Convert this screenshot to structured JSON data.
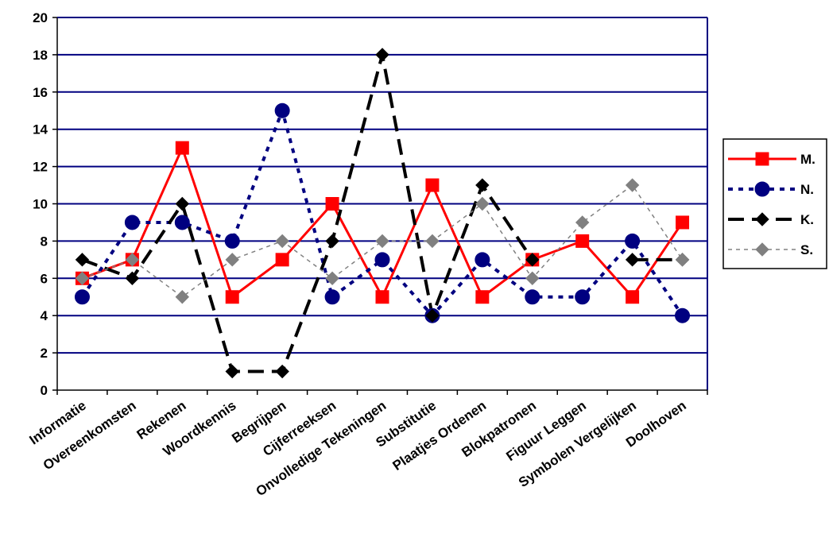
{
  "chart_data": {
    "type": "line",
    "title": "",
    "xlabel": "",
    "ylabel": "",
    "ylim": [
      0,
      20
    ],
    "yticks": [
      0,
      2,
      4,
      6,
      8,
      10,
      12,
      14,
      16,
      18,
      20
    ],
    "grid": true,
    "legend_position": "right",
    "categories": [
      "Informatie",
      "Overeenkomsten",
      "Rekenen",
      "Woordkennis",
      "Begrijpen",
      "Cijferreeksen",
      "Onvolledige Tekeningen",
      "Substitutie",
      "Plaatjes Ordenen",
      "Blokpatronen",
      "Figuur Leggen",
      "Symbolen Vergelijken",
      "Doolhoven"
    ],
    "series": [
      {
        "name": "M.",
        "values": [
          6,
          7,
          13,
          5,
          7,
          10,
          5,
          11,
          5,
          7,
          8,
          5,
          9
        ],
        "color": "#ff0000",
        "marker": "square",
        "dash": "solid"
      },
      {
        "name": "N.",
        "values": [
          5,
          9,
          9,
          8,
          15,
          5,
          7,
          4,
          7,
          5,
          5,
          8,
          4
        ],
        "color": "#000080",
        "marker": "circle",
        "dash": "dotted"
      },
      {
        "name": "K.",
        "values": [
          7,
          6,
          10,
          1,
          1,
          8,
          18,
          4,
          11,
          7,
          null,
          7,
          7
        ],
        "color": "#000000",
        "marker": "diamond",
        "dash": "dashed"
      },
      {
        "name": "S.",
        "values": [
          6,
          7,
          5,
          7,
          8,
          6,
          8,
          8,
          10,
          6,
          9,
          11,
          7
        ],
        "color": "#808080",
        "marker": "diamond",
        "dash": "dashdot"
      }
    ],
    "colors": {
      "grid": "#000080",
      "axis": "#000000",
      "background": "#ffffff"
    }
  }
}
